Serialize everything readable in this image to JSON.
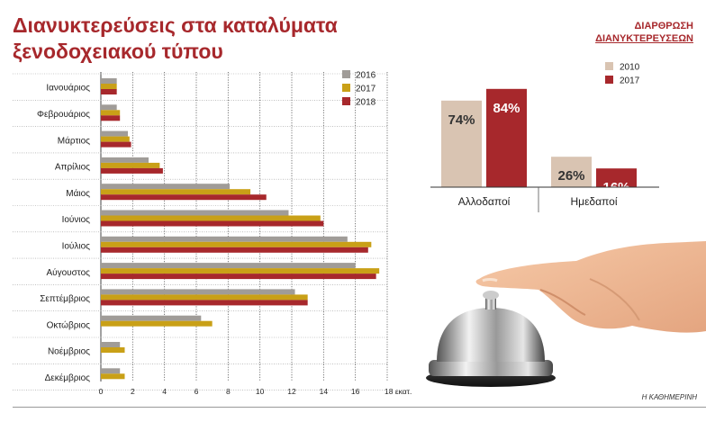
{
  "chart_data": [
    {
      "type": "bar",
      "orientation": "horizontal",
      "title_lines": [
        "Διανυκτερεύσεις στα καταλύματα",
        "ξενοδοχειακού τύπου"
      ],
      "categories": [
        "Ιανουάριος",
        "Φεβρουάριος",
        "Μάρτιος",
        "Απρίλιος",
        "Μάιος",
        "Ιούνιος",
        "Ιούλιος",
        "Αύγουστος",
        "Σεπτέμβριος",
        "Οκτώβριος",
        "Νοέμβριος",
        "Δεκέμβριος"
      ],
      "series": [
        {
          "name": "2016",
          "color": "#a09c98",
          "values": [
            1.0,
            1.0,
            1.7,
            3.0,
            8.1,
            11.8,
            15.5,
            16.0,
            12.2,
            6.3,
            1.2,
            1.2
          ]
        },
        {
          "name": "2017",
          "color": "#c9a017",
          "values": [
            1.0,
            1.2,
            1.8,
            3.7,
            9.4,
            13.8,
            17.0,
            17.5,
            13.0,
            7.0,
            1.5,
            1.5
          ]
        },
        {
          "name": "2018",
          "color": "#a7282c",
          "values": [
            1.0,
            1.2,
            1.9,
            3.9,
            10.4,
            14.0,
            16.8,
            17.3,
            13.0,
            null,
            null,
            null
          ]
        }
      ],
      "x_ticks": [
        "0",
        "2",
        "4",
        "6",
        "8",
        "10",
        "12",
        "14",
        "16",
        "18 εκατ."
      ],
      "xlim": [
        0,
        18
      ],
      "grid": "vertical",
      "legend": "top-right"
    },
    {
      "type": "bar",
      "title_lines": [
        "ΔΙΑΡΘΡΩΣΗ",
        "ΔΙΑΝΥΚΤΕΡΕΥΣΕΩΝ"
      ],
      "categories": [
        "Αλλοδαποί",
        "Ημεδαποί"
      ],
      "series": [
        {
          "name": "2010",
          "color": "#d9c4b2",
          "values": [
            74,
            26
          ]
        },
        {
          "name": "2017",
          "color": "#a7282c",
          "values": [
            84,
            16
          ]
        }
      ],
      "value_labels": [
        [
          "74%",
          "26%"
        ],
        [
          "84%",
          "16%"
        ]
      ],
      "ylim": [
        0,
        100
      ],
      "legend": "top-left"
    }
  ],
  "source": "Η ΚΑΘΗΜΕΡΙΝΗ"
}
